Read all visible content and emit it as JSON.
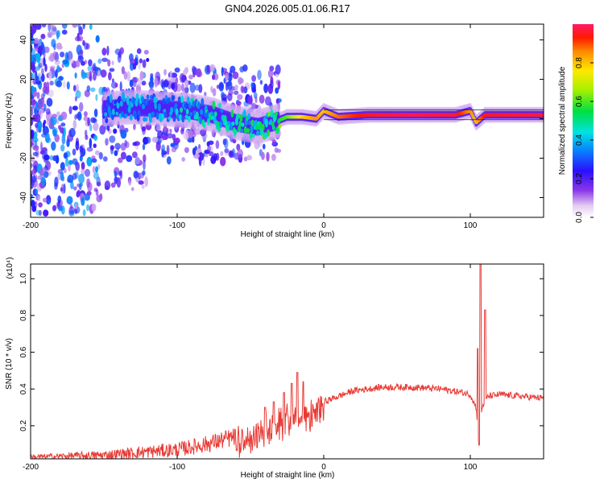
{
  "title": "GN04.2026.005.01.06.R17",
  "chart_data": [
    {
      "type": "heatmap",
      "title": "GN04.2026.005.01.06.R17",
      "xlabel": "Height of straight line (km)",
      "ylabel": "Frequency (Hz)",
      "xlim": [
        -200,
        150
      ],
      "ylim": [
        -50,
        48
      ],
      "xticks": [
        -200,
        -100,
        0,
        100
      ],
      "yticks": [
        -40,
        -20,
        0,
        20,
        40
      ],
      "colorbar": {
        "label": "Normalized spectral amplitude",
        "range": [
          0,
          1
        ],
        "ticks": [
          "0.0",
          "0.2",
          "0.4",
          "0.6",
          "0.8"
        ]
      },
      "ridge": [
        {
          "x": -150,
          "y": 5,
          "amp": 0.32
        },
        {
          "x": -130,
          "y": 6,
          "amp": 0.36
        },
        {
          "x": -110,
          "y": 5,
          "amp": 0.34
        },
        {
          "x": -90,
          "y": 4,
          "amp": 0.4
        },
        {
          "x": -75,
          "y": 2,
          "amp": 0.44
        },
        {
          "x": -60,
          "y": -2,
          "amp": 0.48
        },
        {
          "x": -45,
          "y": -4,
          "amp": 0.46
        },
        {
          "x": -35,
          "y": -2,
          "amp": 0.52
        },
        {
          "x": -25,
          "y": 1,
          "amp": 0.6
        },
        {
          "x": -15,
          "y": 1,
          "amp": 0.78
        },
        {
          "x": -5,
          "y": 0,
          "amp": 0.85
        },
        {
          "x": 0,
          "y": 4,
          "amp": 0.8
        },
        {
          "x": 10,
          "y": 1,
          "amp": 0.88
        },
        {
          "x": 30,
          "y": 2,
          "amp": 0.95
        },
        {
          "x": 60,
          "y": 2,
          "amp": 0.98
        },
        {
          "x": 90,
          "y": 2,
          "amp": 0.96
        },
        {
          "x": 100,
          "y": 4,
          "amp": 0.85
        },
        {
          "x": 104,
          "y": -2,
          "amp": 0.8
        },
        {
          "x": 110,
          "y": 2,
          "amp": 0.95
        },
        {
          "x": 150,
          "y": 2,
          "amp": 0.97
        }
      ]
    },
    {
      "type": "line",
      "xlabel": "Height of straight line (km)",
      "ylabel": "SNR (10 * v/v)",
      "y_scale_label": "(x10⁴)",
      "xlim": [
        -200,
        150
      ],
      "ylim": [
        0.02,
        1.08
      ],
      "xticks": [
        -200,
        -100,
        0,
        100
      ],
      "yticks": [
        "0.2",
        "0.4",
        "0.6",
        "0.8",
        "1.0"
      ],
      "series": [
        {
          "name": "SNR",
          "color": "#e83a34",
          "envelope_x": [
            -200,
            -150,
            -100,
            -80,
            -60,
            -50,
            -40,
            -30,
            -20,
            -15,
            -10,
            0,
            10,
            20,
            30,
            40,
            60,
            80,
            95,
            100,
            104,
            106,
            108,
            112,
            120,
            135,
            150
          ],
          "envelope_y": [
            0.03,
            0.04,
            0.07,
            0.1,
            0.14,
            0.18,
            0.22,
            0.25,
            0.28,
            0.29,
            0.3,
            0.33,
            0.36,
            0.39,
            0.4,
            0.41,
            0.41,
            0.4,
            0.38,
            0.37,
            0.3,
            0.08,
            0.3,
            0.36,
            0.37,
            0.36,
            0.35
          ],
          "spikes": [
            {
              "x": -40,
              "y": 0.3
            },
            {
              "x": -34,
              "y": 0.33
            },
            {
              "x": -27,
              "y": 0.38
            },
            {
              "x": -22,
              "y": 0.43
            },
            {
              "x": -18,
              "y": 0.49
            },
            {
              "x": -14,
              "y": 0.44
            },
            {
              "x": 105,
              "y": 0.62
            },
            {
              "x": 107,
              "y": 1.08
            },
            {
              "x": 110,
              "y": 0.83
            }
          ]
        }
      ]
    }
  ]
}
